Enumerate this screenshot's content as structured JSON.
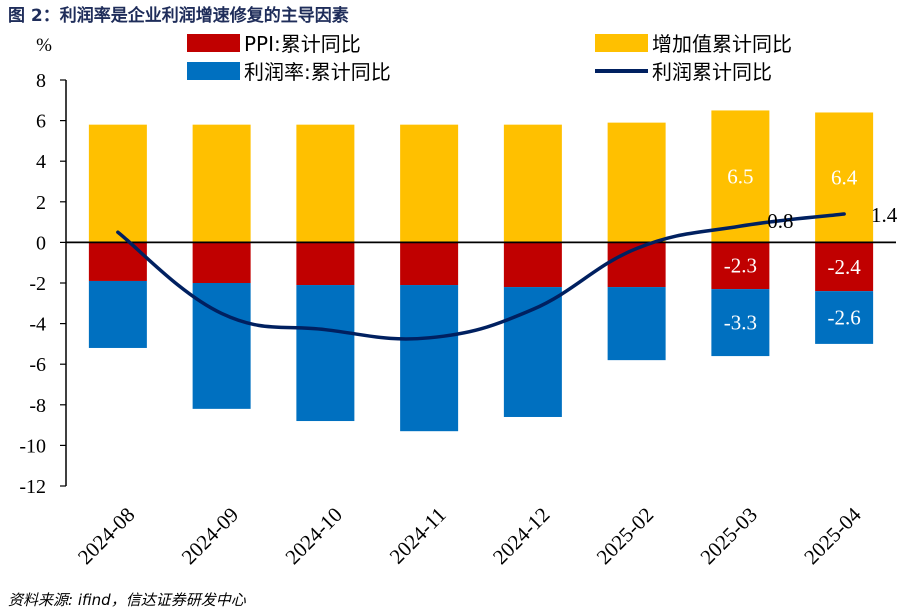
{
  "figure": {
    "title": "图 2：利润率是企业利润增速修复的主导因素",
    "y_unit": "%",
    "source": "资料来源: ifind，信达证券研发中心"
  },
  "chart_data": {
    "type": "bar",
    "stacked": true,
    "categories": [
      "2024-08",
      "2024-09",
      "2024-10",
      "2024-11",
      "2024-12",
      "2025-02",
      "2025-03",
      "2025-04"
    ],
    "ylim": [
      -12,
      8
    ],
    "yticks": [
      -12,
      -10,
      -8,
      -6,
      -4,
      -2,
      0,
      2,
      4,
      6,
      8
    ],
    "ylabel": "%",
    "series": [
      {
        "name": "PPI:累计同比",
        "kind": "bar",
        "color": "#C00000",
        "values": [
          -1.9,
          -2.0,
          -2.1,
          -2.1,
          -2.2,
          -2.2,
          -2.3,
          -2.4
        ],
        "labels": [
          null,
          null,
          null,
          null,
          null,
          null,
          "-2.3",
          "-2.4"
        ]
      },
      {
        "name": "利润率:累计同比",
        "kind": "bar",
        "color": "#0070C0",
        "values": [
          -3.3,
          -6.2,
          -6.7,
          -7.2,
          -6.4,
          -3.6,
          -3.3,
          -2.6
        ],
        "labels": [
          null,
          null,
          null,
          null,
          null,
          null,
          "-3.3",
          "-2.6"
        ]
      },
      {
        "name": "增加值累计同比",
        "kind": "bar",
        "color": "#FFC000",
        "values": [
          5.8,
          5.8,
          5.8,
          5.8,
          5.8,
          5.9,
          6.5,
          6.4
        ],
        "labels": [
          null,
          null,
          null,
          null,
          null,
          null,
          "6.5",
          "6.4"
        ]
      },
      {
        "name": "利润累计同比",
        "kind": "line",
        "color": "#002060",
        "values": [
          0.5,
          -3.5,
          -4.3,
          -4.7,
          -3.3,
          -0.3,
          0.8,
          1.4
        ],
        "labels": [
          null,
          null,
          null,
          null,
          null,
          null,
          "0.8",
          "1.4"
        ]
      }
    ],
    "legend": {
      "placement": "top",
      "entries": [
        "PPI:累计同比",
        "增加值累计同比",
        "利润率:累计同比",
        "利润累计同比"
      ]
    }
  }
}
